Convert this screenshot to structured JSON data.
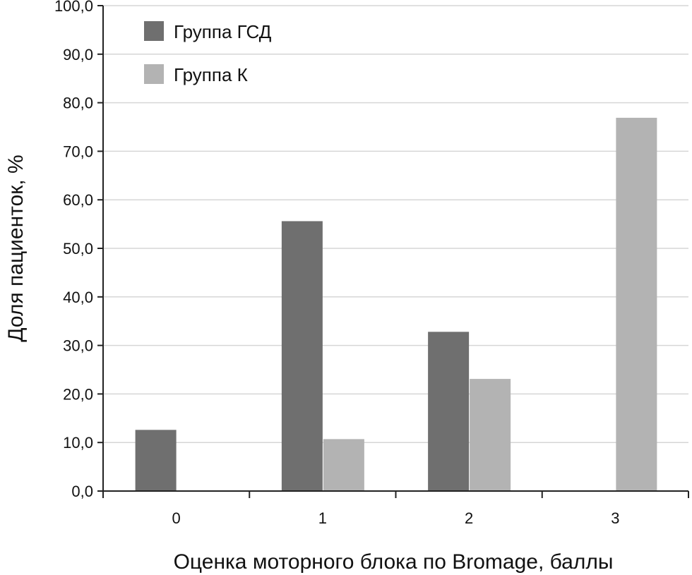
{
  "chart_data": {
    "type": "bar",
    "xlabel": "Оценка моторного блока по Bromage, баллы",
    "ylabel": "Доля пациенток, %",
    "categories": [
      "0",
      "1",
      "2",
      "3"
    ],
    "y_ticks": [
      "0,0",
      "10,0",
      "20,0",
      "30,0",
      "40,0",
      "50,0",
      "60,0",
      "70,0",
      "80,0",
      "90,0",
      "100,0"
    ],
    "ylim": [
      0,
      100
    ],
    "grid": true,
    "legend_position": "top-left",
    "series": [
      {
        "name": "Группа ГСД",
        "color": "#6f6f6f",
        "values": [
          12.6,
          55.6,
          32.8,
          0
        ]
      },
      {
        "name": "Группа К",
        "color": "#b3b3b3",
        "values": [
          0,
          10.7,
          23.1,
          76.9
        ]
      }
    ]
  }
}
